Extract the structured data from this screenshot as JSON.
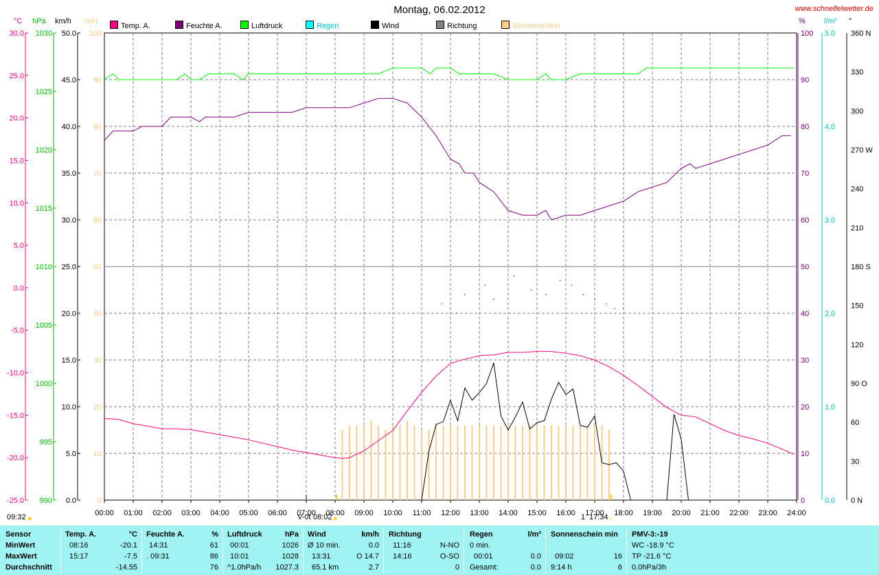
{
  "title": "Montag, 06.02.2012",
  "site": "www.schneifelwetter.de",
  "units": {
    "temp": "°C",
    "pressure": "hPa",
    "wind": "km/h",
    "sun": "min",
    "humidity": "%",
    "rain": "l/m²",
    "direction": "°"
  },
  "legend": [
    {
      "label": "Temp. A.",
      "color": "#ff0080"
    },
    {
      "label": "Feuchte A.",
      "color": "#800080"
    },
    {
      "label": "Luftdruck",
      "color": "#00ff00"
    },
    {
      "label": "Regen",
      "color": "#00ffff"
    },
    {
      "label": "Wind",
      "color": "#000000"
    },
    {
      "label": "Richtung",
      "color": "#808080"
    },
    {
      "label": "Sonnenschein",
      "color": "#ffcc80"
    }
  ],
  "axes": {
    "temp": [
      "30.0",
      "25.0",
      "20.0",
      "15.0",
      "10.0",
      "5.0",
      "0.0",
      "-5.0",
      "-10.0",
      "-15.0",
      "-20.0",
      "-25.0"
    ],
    "pressure": [
      "1030",
      "1025",
      "1020",
      "1015",
      "1010",
      "1005",
      "1000",
      "995",
      "990"
    ],
    "wind": [
      "50.0",
      "45.0",
      "40.0",
      "35.0",
      "30.0",
      "25.0",
      "20.0",
      "15.0",
      "10.0",
      "5.0",
      "0.0"
    ],
    "sun_top": [
      "100",
      "90",
      "80",
      "70",
      "60",
      "50"
    ],
    "sun_bottom": [
      "40",
      "30",
      "20",
      "10",
      "0"
    ],
    "humidity": [
      "100",
      "90",
      "80",
      "70",
      "60",
      "50",
      "40",
      "30",
      "20",
      "10",
      "0"
    ],
    "rain": [
      "5.0",
      "4.0",
      "3.0",
      "2.0",
      "1.0",
      "0.0"
    ],
    "direction": [
      "360 N",
      "330",
      "300",
      "270 W",
      "240",
      "210",
      "180 S",
      "150",
      "120",
      "90  O",
      "60",
      "30",
      "0  N"
    ],
    "x": [
      "00:00",
      "01:00",
      "02:00",
      "03:00",
      "04:00",
      "05:00",
      "06:00",
      "07:00",
      "08:00",
      "09:00",
      "10:00",
      "11:00",
      "12:00",
      "13:00",
      "14:00",
      "15:00",
      "16:00",
      "17:00",
      "18:00",
      "19:00",
      "20:00",
      "21:00",
      "22:00",
      "23:00",
      "24:00"
    ]
  },
  "timebar": {
    "left": "09:32",
    "sunrise": "08:02",
    "sunset": "17:34",
    "mark1": "V-0t",
    "mark2": "1"
  },
  "chart_data": {
    "type": "line",
    "x_unit": "hour of day",
    "series": [
      {
        "name": "Temp. A.",
        "unit": "°C",
        "x": [
          0,
          0.5,
          1,
          1.5,
          2,
          2.5,
          3,
          3.5,
          4,
          4.5,
          5,
          5.5,
          6,
          6.5,
          7,
          7.5,
          8,
          8.25,
          8.5,
          9,
          9.5,
          10,
          10.5,
          11,
          11.5,
          12,
          12.5,
          13,
          13.5,
          14,
          14.5,
          15,
          15.5,
          16,
          16.5,
          17,
          17.5,
          18,
          18.5,
          19,
          19.5,
          20,
          20.5,
          21,
          21.5,
          22,
          22.5,
          23,
          23.5,
          23.9
        ],
        "y": [
          -15.4,
          -15.5,
          -16.0,
          -16.3,
          -16.6,
          -16.6,
          -16.7,
          -17.0,
          -17.3,
          -17.6,
          -17.9,
          -18.3,
          -18.7,
          -19.1,
          -19.4,
          -19.7,
          -20.0,
          -20.1,
          -20.0,
          -19.2,
          -18.0,
          -16.8,
          -14.5,
          -12.3,
          -10.4,
          -8.9,
          -8.4,
          -8.0,
          -7.9,
          -7.6,
          -7.6,
          -7.5,
          -7.5,
          -7.7,
          -8.0,
          -8.5,
          -9.3,
          -10.3,
          -11.5,
          -12.8,
          -14.1,
          -15.0,
          -15.2,
          -16.0,
          -16.8,
          -17.4,
          -17.8,
          -18.3,
          -19.0,
          -19.6
        ]
      },
      {
        "name": "Feuchte A.",
        "unit": "%",
        "x": [
          0,
          0.3,
          1,
          1.3,
          2,
          2.3,
          3,
          3.3,
          3.5,
          4,
          4.5,
          5,
          5.5,
          6,
          6.5,
          7,
          7.5,
          8,
          8.5,
          9,
          9.5,
          10,
          10.5,
          11,
          11.5,
          12,
          12.3,
          12.5,
          12.8,
          13,
          13.5,
          14,
          14.5,
          15,
          15.3,
          15.5,
          16,
          16.5,
          17,
          17.5,
          18,
          18.5,
          19,
          19.5,
          20,
          20.3,
          20.5,
          21,
          21.5,
          22,
          22.5,
          23,
          23.5,
          23.8
        ],
        "y": [
          77,
          79,
          79,
          80,
          80,
          82,
          82,
          81,
          82,
          82,
          82,
          83,
          83,
          83,
          83,
          84,
          84,
          84,
          84,
          85,
          86,
          86,
          85,
          82,
          78,
          73,
          72,
          70,
          70,
          68,
          66,
          62,
          61,
          61,
          62,
          60,
          61,
          61,
          62,
          63,
          64,
          66,
          67,
          68,
          71,
          72,
          71,
          72,
          73,
          74,
          75,
          76,
          78,
          78
        ]
      },
      {
        "name": "Luftdruck",
        "unit": "hPa",
        "x": [
          0,
          0.3,
          0.5,
          1,
          1.5,
          2,
          2.5,
          2.8,
          3,
          3.3,
          3.6,
          3.8,
          4,
          4.5,
          4.8,
          5,
          6,
          7,
          8,
          8.5,
          9,
          9.5,
          10,
          10.5,
          11,
          11.3,
          11.5,
          12,
          12.3,
          12.5,
          13,
          13.5,
          14,
          14.5,
          15,
          15.3,
          15.5,
          16,
          16.5,
          17,
          17.5,
          18,
          18.5,
          18.8,
          19,
          19.5,
          20,
          21,
          22,
          23,
          23.9
        ],
        "y": [
          1026,
          1026.5,
          1026,
          1026,
          1026,
          1026,
          1026,
          1026.5,
          1026,
          1026,
          1026.5,
          1026.5,
          1026.5,
          1026.5,
          1026,
          1026.5,
          1026.5,
          1026.5,
          1026.5,
          1026.5,
          1026.5,
          1026.5,
          1027,
          1027,
          1027,
          1026.5,
          1027,
          1027,
          1026.5,
          1026.5,
          1026.5,
          1026.5,
          1026,
          1026,
          1026,
          1026.5,
          1026,
          1026,
          1026.5,
          1026.5,
          1026.5,
          1026.5,
          1026.5,
          1027,
          1027,
          1027,
          1027,
          1027,
          1027,
          1027,
          1027
        ]
      },
      {
        "name": "Wind",
        "unit": "km/h",
        "x": [
          11.0,
          11.25,
          11.5,
          11.75,
          12.0,
          12.25,
          12.5,
          12.75,
          13.0,
          13.25,
          13.5,
          13.75,
          14.0,
          14.25,
          14.5,
          14.75,
          15.0,
          15.25,
          15.5,
          15.75,
          16.0,
          16.25,
          16.5,
          16.75,
          17.0,
          17.25,
          17.5,
          17.75,
          18.0,
          18.25,
          19.5,
          19.75,
          20.0,
          20.25
        ],
        "y": [
          0,
          5.2,
          8.1,
          8.4,
          10.7,
          8.5,
          12.0,
          10.7,
          11.5,
          12.5,
          14.7,
          9.0,
          7.5,
          8.9,
          10.5,
          7.6,
          8.3,
          8.5,
          10.8,
          12.6,
          11.3,
          11.9,
          8.0,
          7.8,
          9.0,
          4.0,
          3.8,
          4.0,
          3.1,
          0,
          0,
          9.2,
          6.5,
          0
        ]
      },
      {
        "name": "Sonnenschein",
        "unit": "min",
        "x": [
          8.25,
          8.5,
          8.75,
          9.0,
          9.25,
          9.5,
          9.75,
          10.0,
          10.25,
          10.5,
          10.75,
          11.0,
          11.25,
          11.5,
          11.75,
          12.0,
          12.25,
          12.5,
          12.75,
          13.0,
          13.25,
          13.5,
          13.75,
          14.0,
          14.25,
          14.5,
          14.75,
          15.0,
          15.25,
          15.5,
          15.75,
          16.0,
          16.25,
          16.5,
          16.75,
          17.0,
          17.25,
          17.5
        ],
        "y": [
          15,
          16,
          16,
          16,
          17,
          16,
          15,
          16,
          16,
          17,
          16,
          15,
          15,
          16,
          16,
          16,
          16,
          16,
          16,
          16,
          16,
          16,
          16,
          16,
          16,
          16,
          16,
          16,
          16,
          16,
          16,
          16,
          16,
          16,
          16,
          16,
          16,
          15
        ]
      }
    ]
  },
  "footer": {
    "rows": [
      "Sensor",
      "MinWert",
      "MaxWert",
      "Durchschnitt"
    ],
    "temp": {
      "header": "Temp. A.",
      "unit": "°C",
      "min_time": "08:16",
      "min": "-20.1",
      "max_time": "15:17",
      "max": "-7.5",
      "avg": "-14.55"
    },
    "hum": {
      "header": "Feuchte A.",
      "unit": "%",
      "min_time": "14:31",
      "min": "61",
      "max_time": ". 09:31",
      "max": "86",
      "avg": "76"
    },
    "press": {
      "header": "Luftdruck",
      "unit": "hPa",
      "min_time": "00:01",
      "min": "1026",
      "max_time": "10:01",
      "max": "1028",
      "avg_label": "^1.0hPa/h",
      "avg": "1027.3"
    },
    "wind": {
      "header": "Wind",
      "unit": "km/h",
      "r1_label": "Ø 10 min.",
      "r1": "0.0",
      "r2_label": "13:31",
      "r2": "O 14.7",
      "r3_label": "65.1 km",
      "r3": "2.7"
    },
    "dir": {
      "header": "Richtung",
      "r1_time": "11:16",
      "r1": "N-NO",
      "r2_time": "14:16",
      "r2": "O-SO",
      "r3": "0"
    },
    "rain": {
      "header": "Regen",
      "unit": "l/m²",
      "r1": "0 min.",
      "r2_time": "00:01",
      "r2": "0.0",
      "r3_label": "Gesamt:",
      "r3": "0.0"
    },
    "sun": {
      "header": "Sonnenschein min",
      "r2_time": "09:02",
      "r2": "16",
      "r3_label": "9:14 h",
      "r3": "6"
    },
    "pmv": {
      "header": "PMV-3:-19",
      "r1": "WC -18.9 °C",
      "r2": "TP -21.6 °C",
      "r3": "0.0hPa/3h"
    }
  }
}
